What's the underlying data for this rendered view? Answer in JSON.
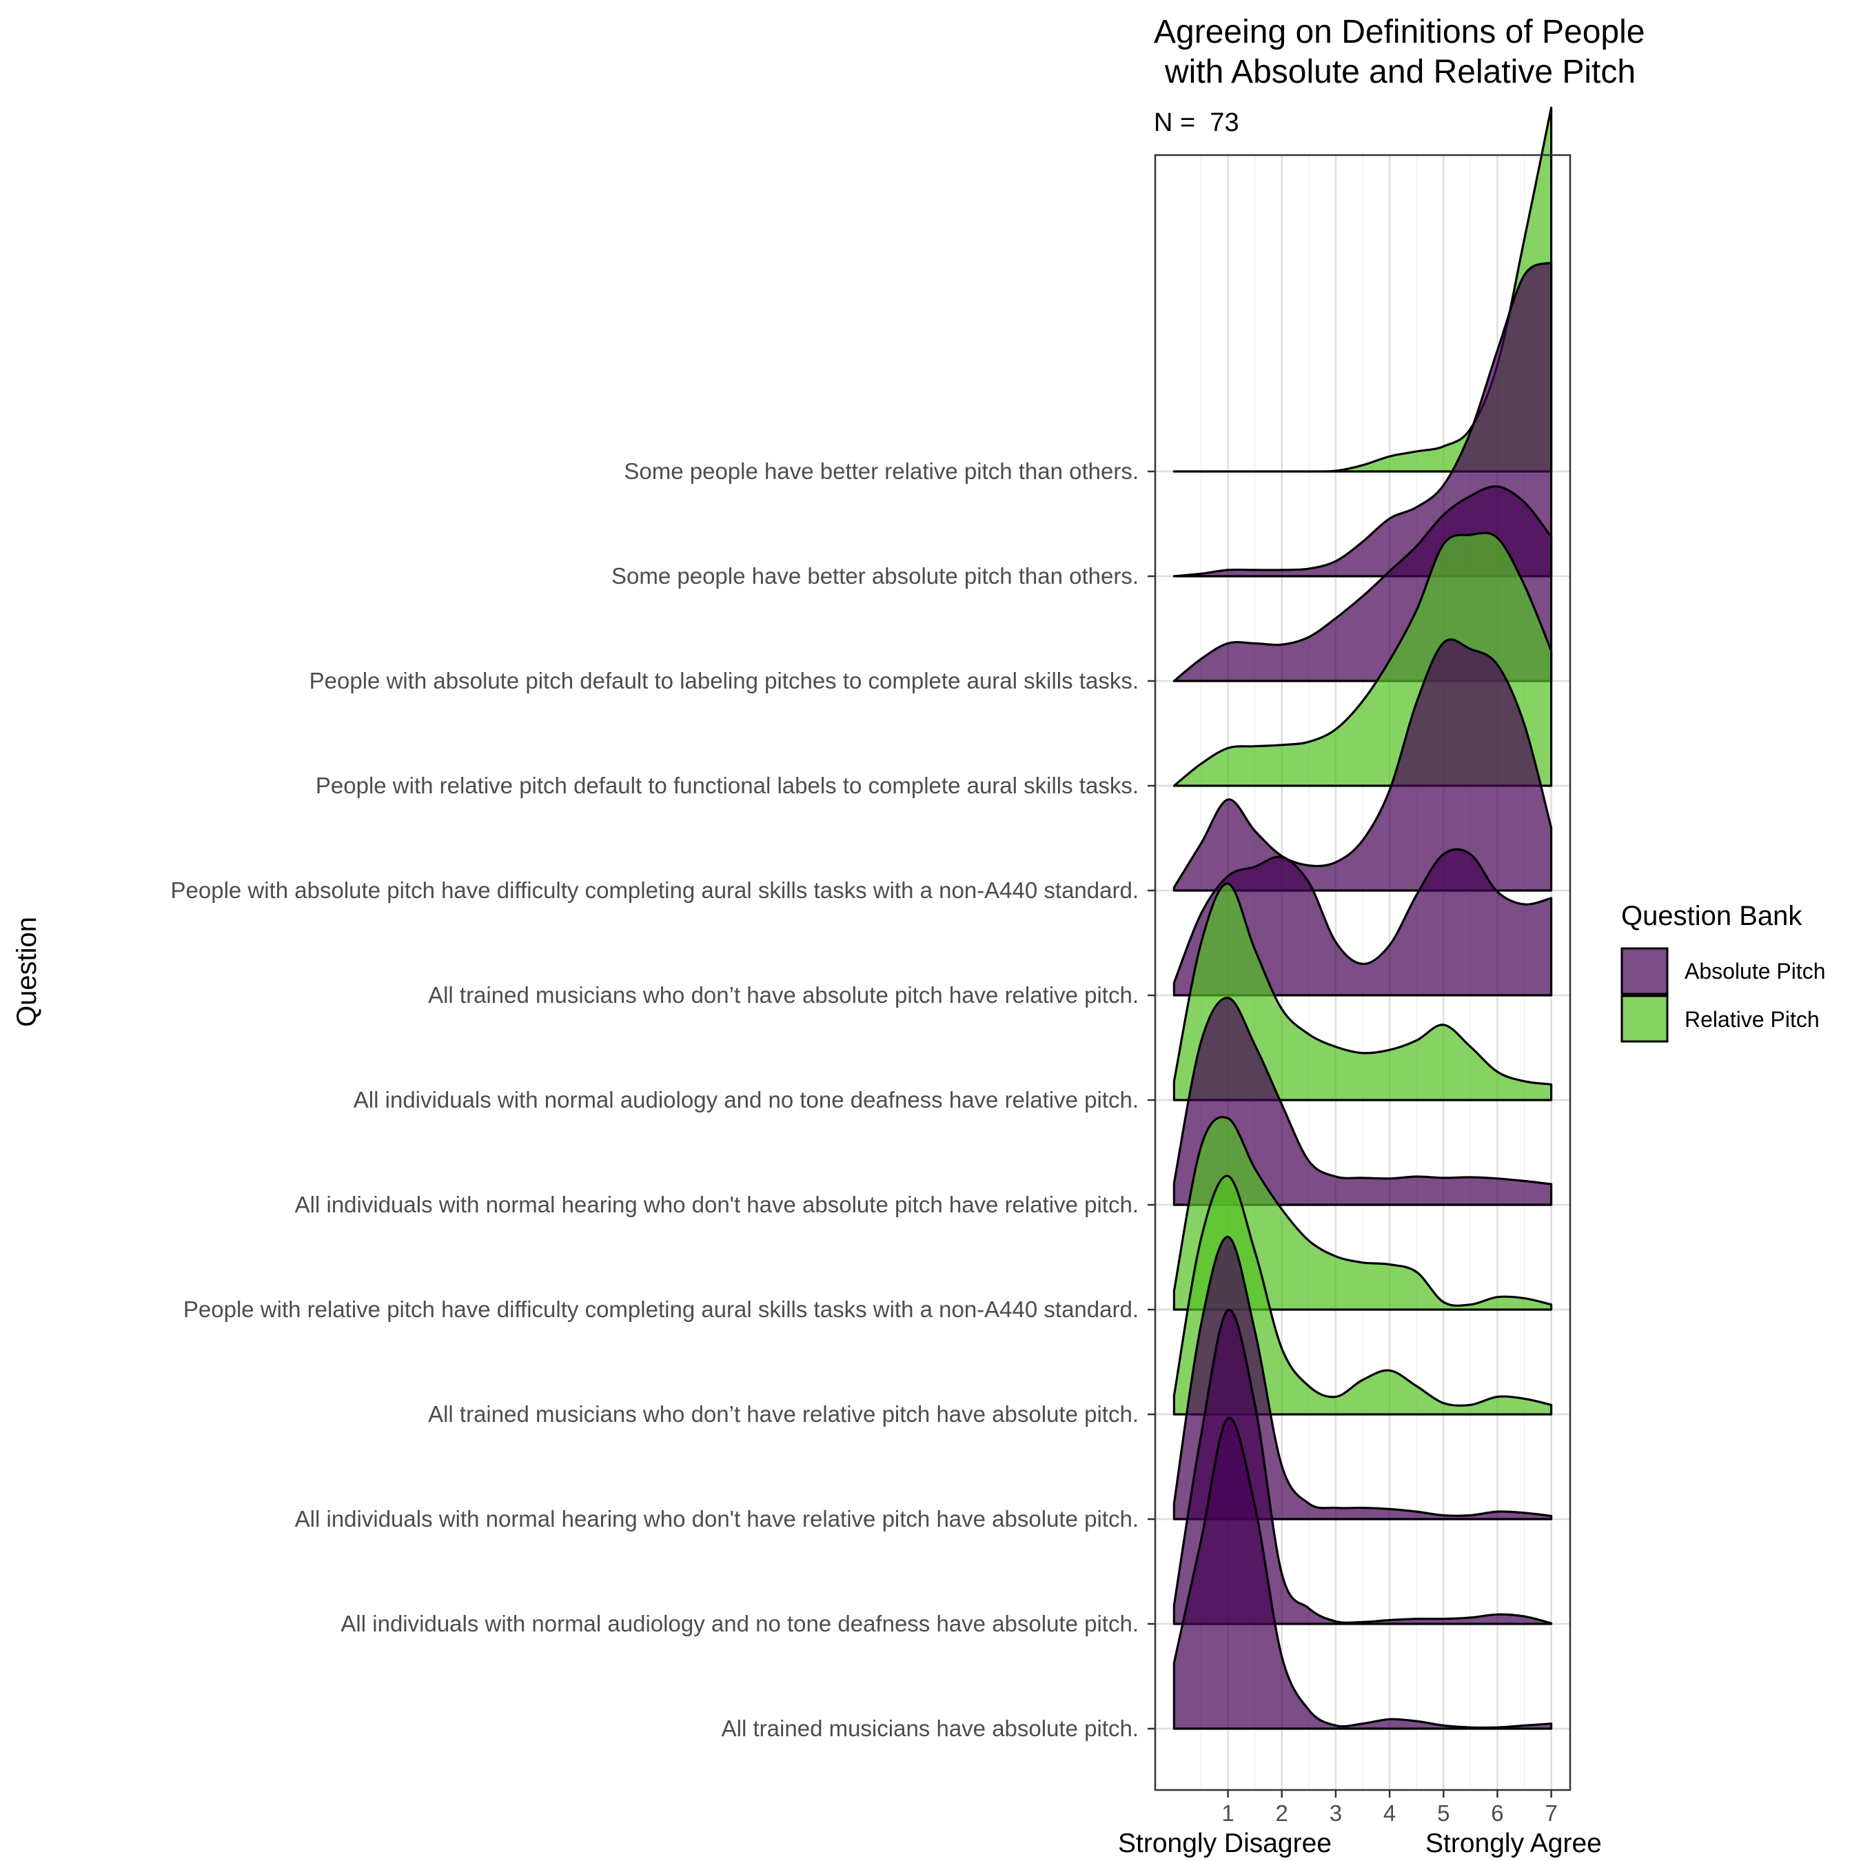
{
  "chart_data": {
    "type": "ridgeline",
    "title_lines": [
      "Agreeing on Definitions of People",
      "with Absolute and Relative Pitch"
    ],
    "subtitle": "N =  73",
    "ylabel": "Question",
    "x_ticks": [
      1,
      2,
      3,
      4,
      5,
      6,
      7
    ],
    "x_range": [
      -0.35,
      7.35
    ],
    "x_bottom_labels": [
      "Strongly Disagree",
      "Strongly Agree"
    ],
    "legend": {
      "title": "Question Bank",
      "placement": "right",
      "entries": [
        {
          "label": "Absolute Pitch",
          "color": "#440154"
        },
        {
          "label": "Relative Pitch",
          "color": "#52c022"
        }
      ]
    },
    "colors": {
      "Absolute Pitch": "#440154",
      "Relative Pitch": "#52c022"
    },
    "density_x": [
      0,
      0.5,
      1,
      1.5,
      2,
      2.5,
      3,
      3.5,
      4,
      4.5,
      5,
      5.5,
      6,
      6.5,
      7
    ],
    "questions": [
      {
        "label": "Some people have better relative pitch than others.",
        "bank": "Relative Pitch",
        "density": [
          0,
          0,
          0,
          0,
          0,
          0,
          0.01,
          0.1,
          0.24,
          0.32,
          0.4,
          0.68,
          1.7,
          3.7,
          5.8
        ]
      },
      {
        "label": "Some people have better absolute pitch than others.",
        "bank": "Absolute Pitch",
        "density": [
          0,
          0.04,
          0.1,
          0.1,
          0.1,
          0.12,
          0.24,
          0.55,
          0.92,
          1.1,
          1.45,
          2.3,
          3.6,
          4.8,
          5.0
        ]
      },
      {
        "label": "People with absolute pitch default to labeling pitches to complete aural skills tasks.",
        "bank": "Absolute Pitch",
        "density": [
          0,
          0.35,
          0.6,
          0.6,
          0.58,
          0.7,
          1.0,
          1.35,
          1.75,
          2.15,
          2.65,
          2.95,
          3.1,
          2.85,
          2.3
        ]
      },
      {
        "label": "People with relative pitch default to functional labels to complete aural skills tasks.",
        "bank": "Relative Pitch",
        "density": [
          0,
          0.35,
          0.6,
          0.63,
          0.65,
          0.7,
          0.9,
          1.35,
          2.0,
          2.8,
          3.85,
          4.0,
          3.95,
          3.2,
          2.15
        ]
      },
      {
        "label": "People with absolute pitch have difficulty completing aural skills tasks with a non-A440 standard.",
        "bank": "Absolute Pitch",
        "density": [
          0.05,
          0.75,
          1.45,
          0.95,
          0.55,
          0.4,
          0.45,
          0.8,
          1.6,
          3.0,
          3.95,
          3.85,
          3.6,
          2.65,
          1.0
        ]
      },
      {
        "label": "All trained musicians who don’t have absolute pitch have relative pitch.",
        "bank": "Absolute Pitch",
        "density": [
          0.2,
          1.3,
          1.9,
          2.05,
          2.2,
          1.8,
          0.85,
          0.5,
          0.8,
          1.6,
          2.25,
          2.25,
          1.65,
          1.45,
          1.55
        ]
      },
      {
        "label": "All individuals with normal audiology and no tone deafness have relative pitch.",
        "bank": "Relative Pitch",
        "density": [
          0.3,
          2.5,
          3.45,
          2.4,
          1.45,
          1.05,
          0.85,
          0.75,
          0.8,
          0.95,
          1.2,
          0.85,
          0.45,
          0.3,
          0.25
        ]
      },
      {
        "label": "All individuals with normal hearing who don't have absolute pitch have relative pitch.",
        "bank": "Absolute Pitch",
        "density": [
          0.35,
          2.6,
          3.3,
          2.55,
          1.6,
          0.7,
          0.45,
          0.43,
          0.42,
          0.45,
          0.43,
          0.44,
          0.42,
          0.38,
          0.33
        ]
      },
      {
        "label": "People with relative pitch have difficulty completing aural skills tasks with a non-A440 standard.",
        "bank": "Relative Pitch",
        "density": [
          0.3,
          2.6,
          3.05,
          2.25,
          1.6,
          1.1,
          0.85,
          0.75,
          0.72,
          0.6,
          0.12,
          0.08,
          0.2,
          0.18,
          0.08
        ]
      },
      {
        "label": "All trained musicians who don’t have relative pitch have absolute pitch.",
        "bank": "Relative Pitch",
        "density": [
          0.3,
          2.8,
          3.8,
          2.6,
          1.05,
          0.45,
          0.28,
          0.55,
          0.7,
          0.45,
          0.18,
          0.15,
          0.28,
          0.25,
          0.15
        ]
      },
      {
        "label": "All individuals with normal hearing who don't have relative pitch have absolute pitch.",
        "bank": "Absolute Pitch",
        "density": [
          0.25,
          3.1,
          4.5,
          3.0,
          0.85,
          0.25,
          0.18,
          0.18,
          0.16,
          0.12,
          0.06,
          0.06,
          0.12,
          0.1,
          0.05
        ]
      },
      {
        "label": "All individuals with normal audiology and no tone deafness have absolute pitch.",
        "bank": "Absolute Pitch",
        "density": [
          0.3,
          3.0,
          5.0,
          3.5,
          0.8,
          0.25,
          0.04,
          0.03,
          0.06,
          0.08,
          0.08,
          0.1,
          0.15,
          0.12,
          0.01
        ]
      },
      {
        "label": "All trained musicians have absolute pitch.",
        "bank": "Absolute Pitch",
        "density": [
          1.05,
          3.0,
          4.95,
          3.55,
          1.15,
          0.3,
          0.05,
          0.08,
          0.15,
          0.12,
          0.05,
          0.02,
          0.02,
          0.05,
          0.08
        ]
      }
    ]
  }
}
